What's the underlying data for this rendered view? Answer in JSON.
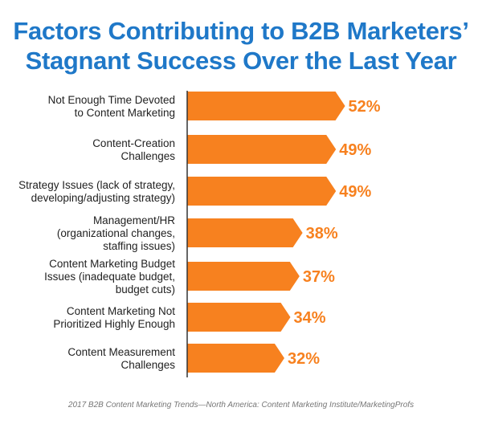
{
  "title_line1": "Factors Contributing to B2B Marketers’",
  "title_line2": "Stagnant Success Over the Last Year",
  "source": "2017 B2B Content Marketing Trends—North America: Content Marketing Institute/MarketingProfs",
  "colors": {
    "title": "#1f78c8",
    "bar": "#f7811f",
    "value_text": "#f7811f",
    "axis": "#333333"
  },
  "chart_data": {
    "type": "bar",
    "orientation": "horizontal",
    "categories": [
      [
        "Not Enough Time Devoted",
        "to Content Marketing"
      ],
      [
        "Content-Creation",
        "Challenges"
      ],
      [
        "Strategy Issues (lack of strategy,",
        "developing/adjusting strategy)"
      ],
      [
        "Management/HR",
        "(organizational changes,",
        "staffing issues)"
      ],
      [
        "Content Marketing Budget",
        "Issues (inadequate budget,",
        "budget cuts)"
      ],
      [
        "Content Marketing Not",
        "Prioritized Highly Enough"
      ],
      [
        "Content Measurement",
        "Challenges"
      ]
    ],
    "values": [
      52,
      49,
      49,
      38,
      37,
      34,
      32
    ],
    "value_labels": [
      "52%",
      "49%",
      "49%",
      "38%",
      "37%",
      "34%",
      "32%"
    ],
    "unit": "%"
  }
}
